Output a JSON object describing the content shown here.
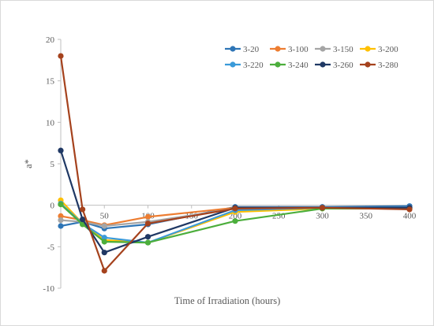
{
  "chart_data": {
    "type": "line",
    "title": "",
    "xlabel": "Time of Irradiation (hours)",
    "ylabel": "a*",
    "xlim": [
      0,
      400
    ],
    "ylim": [
      -10,
      20
    ],
    "x_ticks": [
      50,
      100,
      150,
      200,
      250,
      300,
      350,
      400
    ],
    "y_ticks": [
      -10,
      -5,
      0,
      5,
      10,
      15,
      20
    ],
    "y_gridlines": false,
    "legend_position": "top-right",
    "x": [
      0,
      25,
      50,
      100,
      200,
      300,
      400
    ],
    "series": [
      {
        "name": "3-20",
        "color": "#2e75b6",
        "values": [
          -2.5,
          -2.0,
          -2.8,
          -2.3,
          -0.2,
          -0.2,
          -0.1
        ]
      },
      {
        "name": "3-100",
        "color": "#ed7d31",
        "values": [
          -1.3,
          -1.8,
          -2.4,
          -1.4,
          -0.3,
          -0.3,
          -0.3
        ]
      },
      {
        "name": "3-150",
        "color": "#a5a5a5",
        "values": [
          -1.8,
          -2.0,
          -2.5,
          -2.0,
          -0.4,
          -0.3,
          -0.3
        ]
      },
      {
        "name": "3-200",
        "color": "#ffc000",
        "values": [
          0.6,
          -2.2,
          -4.2,
          -4.5,
          -0.8,
          -0.4,
          -0.4
        ]
      },
      {
        "name": "3-220",
        "color": "#3a9ad9",
        "values": [
          0.2,
          -2.2,
          -3.9,
          -4.5,
          -0.6,
          -0.3,
          -0.3
        ]
      },
      {
        "name": "3-240",
        "color": "#4cae3c",
        "values": [
          0.1,
          -2.3,
          -4.4,
          -4.5,
          -1.9,
          -0.4,
          -0.4
        ]
      },
      {
        "name": "3-260",
        "color": "#1f3864",
        "values": [
          6.6,
          -1.7,
          -5.7,
          -3.8,
          -0.3,
          -0.3,
          -0.3
        ]
      },
      {
        "name": "3-280",
        "color": "#a5421d",
        "values": [
          18.0,
          -0.5,
          -7.9,
          -2.2,
          -0.4,
          -0.3,
          -0.5
        ]
      }
    ]
  }
}
